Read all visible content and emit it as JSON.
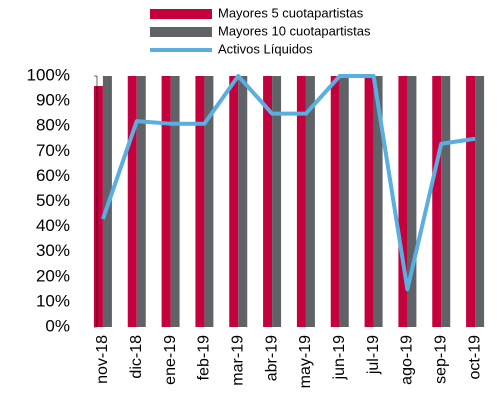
{
  "chart_data": {
    "type": "bar-line",
    "categories": [
      "nov-18",
      "dic-18",
      "ene-19",
      "feb-19",
      "mar-19",
      "abr-19",
      "may-19",
      "jun-19",
      "jul-19",
      "ago-19",
      "sep-19",
      "oct-19"
    ],
    "series": [
      {
        "name": "Mayores 5 cuotapartistas",
        "type": "bar",
        "color": "#c4003d",
        "values": [
          96,
          100,
          100,
          100,
          100,
          100,
          100,
          100,
          100,
          100,
          100,
          100
        ]
      },
      {
        "name": "Mayores 10 cuotapartistas",
        "type": "bar",
        "color": "#5f6368",
        "values": [
          100,
          100,
          100,
          100,
          100,
          100,
          100,
          100,
          100,
          100,
          100,
          100
        ]
      },
      {
        "name": "Activos Líquidos",
        "type": "line",
        "color": "#5aaee0",
        "values": [
          43,
          82,
          81,
          81,
          100,
          85,
          85,
          100,
          100,
          15,
          73,
          75
        ]
      }
    ],
    "ylim": [
      0,
      100
    ],
    "yticks": [
      {
        "value": 0,
        "label": "0%"
      },
      {
        "value": 10,
        "label": "10%"
      },
      {
        "value": 20,
        "label": "20%"
      },
      {
        "value": 30,
        "label": "30%"
      },
      {
        "value": 40,
        "label": "40%"
      },
      {
        "value": 50,
        "label": "50%"
      },
      {
        "value": 60,
        "label": "60%"
      },
      {
        "value": 70,
        "label": "70%"
      },
      {
        "value": 80,
        "label": "80%"
      },
      {
        "value": 90,
        "label": "90%"
      },
      {
        "value": 100,
        "label": "100%"
      }
    ],
    "legend": "top"
  }
}
